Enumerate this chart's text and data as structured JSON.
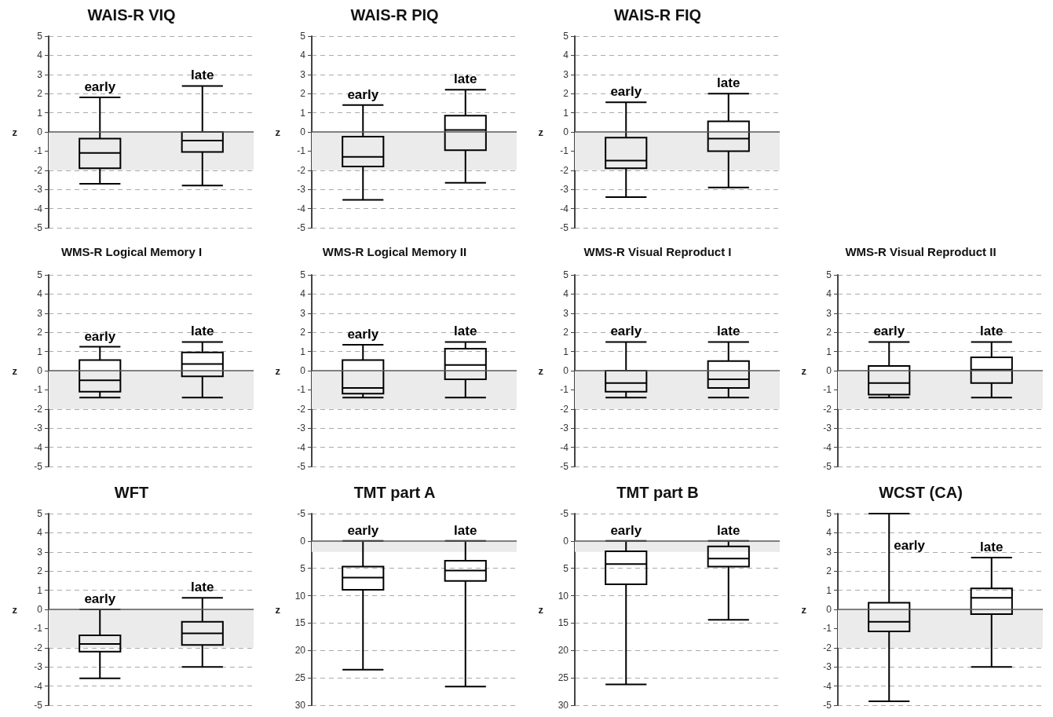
{
  "chart_data": [
    {
      "type": "box",
      "title": "WAIS-R VIQ",
      "ylabel": "z",
      "categories": [
        "early",
        "late"
      ],
      "color": "#000000",
      "boxes": [
        {
          "low": -2.7,
          "q1": -1.9,
          "median": -1.1,
          "q3": -0.35,
          "high": 1.8
        },
        {
          "low": -2.8,
          "q1": -1.05,
          "median": -0.45,
          "q3": 0,
          "high": 2.4
        }
      ],
      "ylim": [
        -5,
        5
      ],
      "yticks": [
        -5,
        -4,
        -3,
        -2,
        -1,
        0,
        1,
        2,
        3,
        4,
        5
      ],
      "grid": "y",
      "tick_labels": "y",
      "bands": [
        {
          "axis": "y",
          "from": 0,
          "to": -2,
          "color": "#ebebeb"
        }
      ],
      "ref_lines": [
        {
          "axis": "y",
          "value": 0,
          "color": "#595959"
        }
      ]
    },
    {
      "type": "box",
      "title": "WAIS-R PIQ",
      "ylabel": "z",
      "categories": [
        "early",
        "late"
      ],
      "color": "#000000",
      "boxes": [
        {
          "low": -3.55,
          "q1": -1.8,
          "median": -1.3,
          "q3": -0.25,
          "high": 1.4
        },
        {
          "low": -2.65,
          "q1": -0.95,
          "median": 0.1,
          "q3": 0.85,
          "high": 2.2
        }
      ],
      "ylim": [
        -5,
        5
      ],
      "yticks": [
        -5,
        -4,
        -3,
        -2,
        -1,
        0,
        1,
        2,
        3,
        4,
        5
      ],
      "grid": "y",
      "tick_labels": "y",
      "bands": [
        {
          "axis": "y",
          "from": 0,
          "to": -2,
          "color": "#ebebeb"
        }
      ],
      "ref_lines": [
        {
          "axis": "y",
          "value": 0,
          "color": "#595959"
        }
      ]
    },
    {
      "type": "box",
      "title": "WAIS-R FIQ",
      "ylabel": "z",
      "categories": [
        "early",
        "late"
      ],
      "color": "#000000",
      "boxes": [
        {
          "low": -3.4,
          "q1": -1.9,
          "median": -1.5,
          "q3": -0.3,
          "high": 1.55
        },
        {
          "low": -2.9,
          "q1": -1.0,
          "median": -0.35,
          "q3": 0.55,
          "high": 2.0
        }
      ],
      "ylim": [
        -5,
        5
      ],
      "yticks": [
        -5,
        -4,
        -3,
        -2,
        -1,
        0,
        1,
        2,
        3,
        4,
        5
      ],
      "grid": "y",
      "tick_labels": "y",
      "bands": [
        {
          "axis": "y",
          "from": 0,
          "to": -2,
          "color": "#ebebeb"
        }
      ],
      "ref_lines": [
        {
          "axis": "y",
          "value": 0,
          "color": "#595959"
        }
      ]
    },
    {
      "type": "box",
      "title": "WMS-R Logical Memory I",
      "ylabel": "z",
      "categories": [
        "early",
        "late"
      ],
      "color": "#000000",
      "boxes": [
        {
          "low": -1.4,
          "q1": -1.1,
          "median": -0.5,
          "q3": 0.55,
          "high": 1.25
        },
        {
          "low": -1.4,
          "q1": -0.3,
          "median": 0.35,
          "q3": 0.95,
          "high": 1.5
        }
      ],
      "ylim": [
        -5,
        5
      ],
      "yticks": [
        -5,
        -4,
        -3,
        -2,
        -1,
        0,
        1,
        2,
        3,
        4,
        5
      ],
      "grid": "y",
      "tick_labels": "y",
      "bands": [
        {
          "axis": "y",
          "from": 0,
          "to": -2,
          "color": "#ebebeb"
        }
      ],
      "ref_lines": [
        {
          "axis": "y",
          "value": 0,
          "color": "#595959"
        }
      ]
    },
    {
      "type": "box",
      "title": "WMS-R Logical Memory II",
      "ylabel": "z",
      "categories": [
        "early",
        "late"
      ],
      "color": "#000000",
      "boxes": [
        {
          "low": -1.4,
          "q1": -1.2,
          "median": -0.9,
          "q3": 0.55,
          "high": 1.35
        },
        {
          "low": -1.4,
          "q1": -0.45,
          "median": 0.3,
          "q3": 1.15,
          "high": 1.5
        }
      ],
      "ylim": [
        -5,
        5
      ],
      "yticks": [
        -5,
        -4,
        -3,
        -2,
        -1,
        0,
        1,
        2,
        3,
        4,
        5
      ],
      "grid": "y",
      "tick_labels": "y",
      "bands": [
        {
          "axis": "y",
          "from": 0,
          "to": -2,
          "color": "#ebebeb"
        }
      ],
      "ref_lines": [
        {
          "axis": "y",
          "value": 0,
          "color": "#595959"
        }
      ]
    },
    {
      "type": "box",
      "title": "WMS-R Visual Reproduct I",
      "ylabel": "z",
      "categories": [
        "early",
        "late"
      ],
      "color": "#000000",
      "boxes": [
        {
          "low": -1.4,
          "q1": -1.1,
          "median": -0.65,
          "q3": 0,
          "high": 1.5
        },
        {
          "low": -1.4,
          "q1": -0.9,
          "median": -0.45,
          "q3": 0.5,
          "high": 1.5
        }
      ],
      "ylim": [
        -5,
        5
      ],
      "yticks": [
        -5,
        -4,
        -3,
        -2,
        -1,
        0,
        1,
        2,
        3,
        4,
        5
      ],
      "grid": "y",
      "tick_labels": "y",
      "bands": [
        {
          "axis": "y",
          "from": 0,
          "to": -2,
          "color": "#ebebeb"
        }
      ],
      "ref_lines": [
        {
          "axis": "y",
          "value": 0,
          "color": "#595959"
        }
      ]
    },
    {
      "type": "box",
      "title": "WMS-R Visual Reproduct II",
      "ylabel": "z",
      "categories": [
        "early",
        "late"
      ],
      "color": "#000000",
      "boxes": [
        {
          "low": -1.4,
          "q1": -1.25,
          "median": -0.65,
          "q3": 0.25,
          "high": 1.5
        },
        {
          "low": -1.4,
          "q1": -0.65,
          "median": 0.05,
          "q3": 0.7,
          "high": 1.5
        }
      ],
      "ylim": [
        -5,
        5
      ],
      "yticks": [
        -5,
        -4,
        -3,
        -2,
        -1,
        0,
        1,
        2,
        3,
        4,
        5
      ],
      "grid": "y",
      "tick_labels": "y",
      "bands": [
        {
          "axis": "y",
          "from": 0,
          "to": -2,
          "color": "#ebebeb"
        }
      ],
      "ref_lines": [
        {
          "axis": "y",
          "value": 0,
          "color": "#595959"
        }
      ]
    },
    {
      "type": "box",
      "title": "WFT",
      "ylabel": "z",
      "categories": [
        "early",
        "late"
      ],
      "color": "#000000",
      "boxes": [
        {
          "low": -3.6,
          "q1": -2.2,
          "median": -1.8,
          "q3": -1.35,
          "high": 0
        },
        {
          "low": -3.0,
          "q1": -1.85,
          "median": -1.25,
          "q3": -0.65,
          "high": 0.6
        }
      ],
      "ylim": [
        -5,
        5
      ],
      "yticks": [
        -5,
        -4,
        -3,
        -2,
        -1,
        0,
        1,
        2,
        3,
        4,
        5
      ],
      "grid": "y",
      "tick_labels": "y",
      "bands": [
        {
          "axis": "y",
          "from": 0,
          "to": -2,
          "color": "#ebebeb"
        }
      ],
      "ref_lines": [
        {
          "axis": "y",
          "value": 0,
          "color": "#595959"
        }
      ]
    },
    {
      "type": "box",
      "title": "TMT part A",
      "ylabel": "z",
      "categories": [
        "early",
        "late"
      ],
      "color": "#000000",
      "boxes": [
        {
          "low": 0,
          "q1": 4.7,
          "median": 6.7,
          "q3": 8.9,
          "high": 23.5
        },
        {
          "low": 0,
          "q1": 3.6,
          "median": 5.4,
          "q3": 7.3,
          "high": 26.6
        }
      ],
      "ylim": [
        30,
        -5
      ],
      "yticks": [
        -5,
        0,
        5,
        10,
        15,
        20,
        25,
        30
      ],
      "grid": "y",
      "tick_labels": "y",
      "bands": [
        {
          "axis": "y",
          "from": 0,
          "to": 2,
          "color": "#ebebeb"
        }
      ],
      "ref_lines": [
        {
          "axis": "y",
          "value": 0,
          "color": "#595959"
        }
      ]
    },
    {
      "type": "box",
      "title": "TMT part B",
      "ylabel": "z",
      "categories": [
        "early",
        "late"
      ],
      "color": "#000000",
      "boxes": [
        {
          "low": 0,
          "q1": 1.9,
          "median": 4.2,
          "q3": 7.9,
          "high": 26.2
        },
        {
          "low": 0,
          "q1": 1.0,
          "median": 3.2,
          "q3": 4.7,
          "high": 14.4
        }
      ],
      "ylim": [
        30,
        -5
      ],
      "yticks": [
        -5,
        0,
        5,
        10,
        15,
        20,
        25,
        30
      ],
      "grid": "y",
      "tick_labels": "y",
      "bands": [
        {
          "axis": "y",
          "from": 0,
          "to": 2,
          "color": "#ebebeb"
        }
      ],
      "ref_lines": [
        {
          "axis": "y",
          "value": 0,
          "color": "#595959"
        }
      ]
    },
    {
      "type": "box",
      "title": "WCST (CA)",
      "ylabel": "z",
      "categories": [
        "early",
        "late"
      ],
      "color": "#000000",
      "boxes": [
        {
          "low": -4.8,
          "q1": -1.15,
          "median": -0.65,
          "q3": 0.35,
          "high": 5.0
        },
        {
          "low": -3.0,
          "q1": -0.25,
          "median": 0.6,
          "q3": 1.1,
          "high": 2.7
        }
      ],
      "ylim": [
        -5,
        5
      ],
      "yticks": [
        -5,
        -4,
        -3,
        -2,
        -1,
        0,
        1,
        2,
        3,
        4,
        5
      ],
      "grid": "y",
      "tick_labels": "y",
      "bands": [
        {
          "axis": "y",
          "from": 0,
          "to": -2,
          "color": "#ebebeb"
        }
      ],
      "ref_lines": [
        {
          "axis": "y",
          "value": 0,
          "color": "#595959"
        }
      ]
    }
  ]
}
